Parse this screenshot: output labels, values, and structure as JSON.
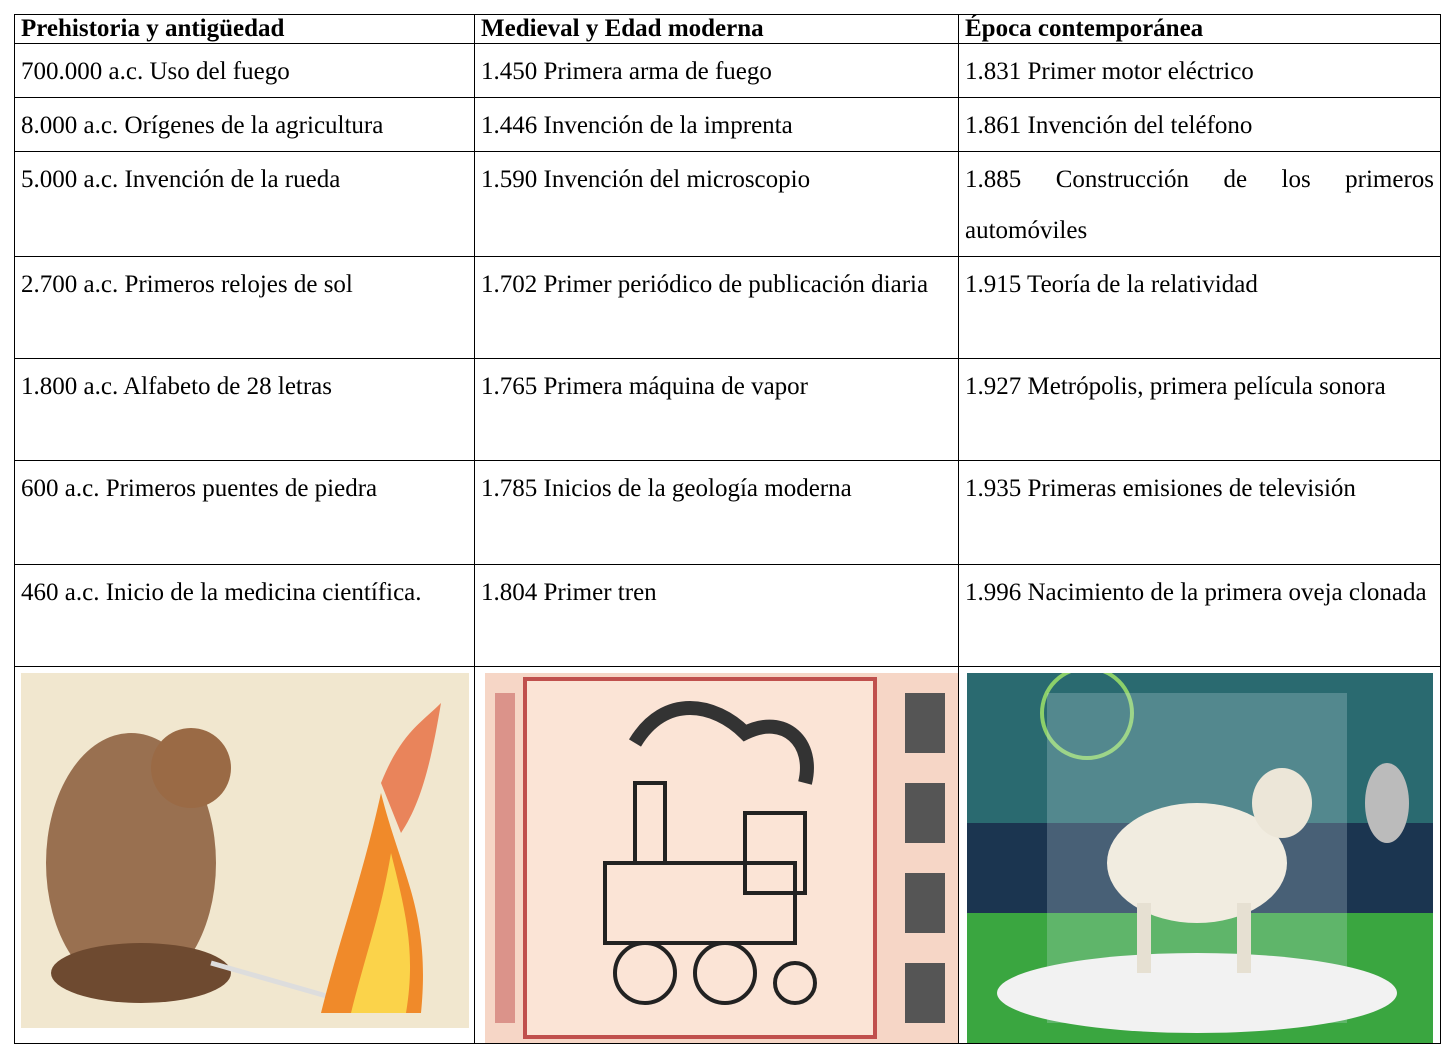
{
  "table": {
    "header": [
      "Prehistoria y antigüedad",
      "Medieval y Edad moderna",
      "Época contemporánea"
    ],
    "rows": [
      [
        "700.000 a.c. Uso del fuego",
        "1.450 Primera arma de fuego",
        "1.831 Primer motor eléctrico"
      ],
      [
        "8.000 a.c. Orígenes de la agricultura",
        "1.446 Invención de la imprenta",
        "1.861 Invención del teléfono"
      ],
      [
        "5.000 a.c. Invención de la rueda",
        "1.590 Invención del microscopio",
        "1.885 Construcción de los primeros automóviles"
      ],
      [
        "2.700 a.c. Primeros relojes de sol",
        "1.702 Primer periódico de publicación diaria",
        "1.915 Teoría de la relatividad"
      ],
      [
        "1.800 a.c. Alfabeto de 28 letras",
        "1.765 Primera máquina de vapor",
        "1.927 Metrópolis, primera película sonora"
      ],
      [
        "600 a.c. Primeros puentes de piedra",
        "1.785 Inicios de la geología moderna",
        "1.935 Primeras emisiones de televisión"
      ],
      [
        "460 a.c. Inicio de la medicina científica.",
        "1.804 Primer tren",
        "1.996 Nacimiento de la primera oveja clonada"
      ]
    ]
  }
}
